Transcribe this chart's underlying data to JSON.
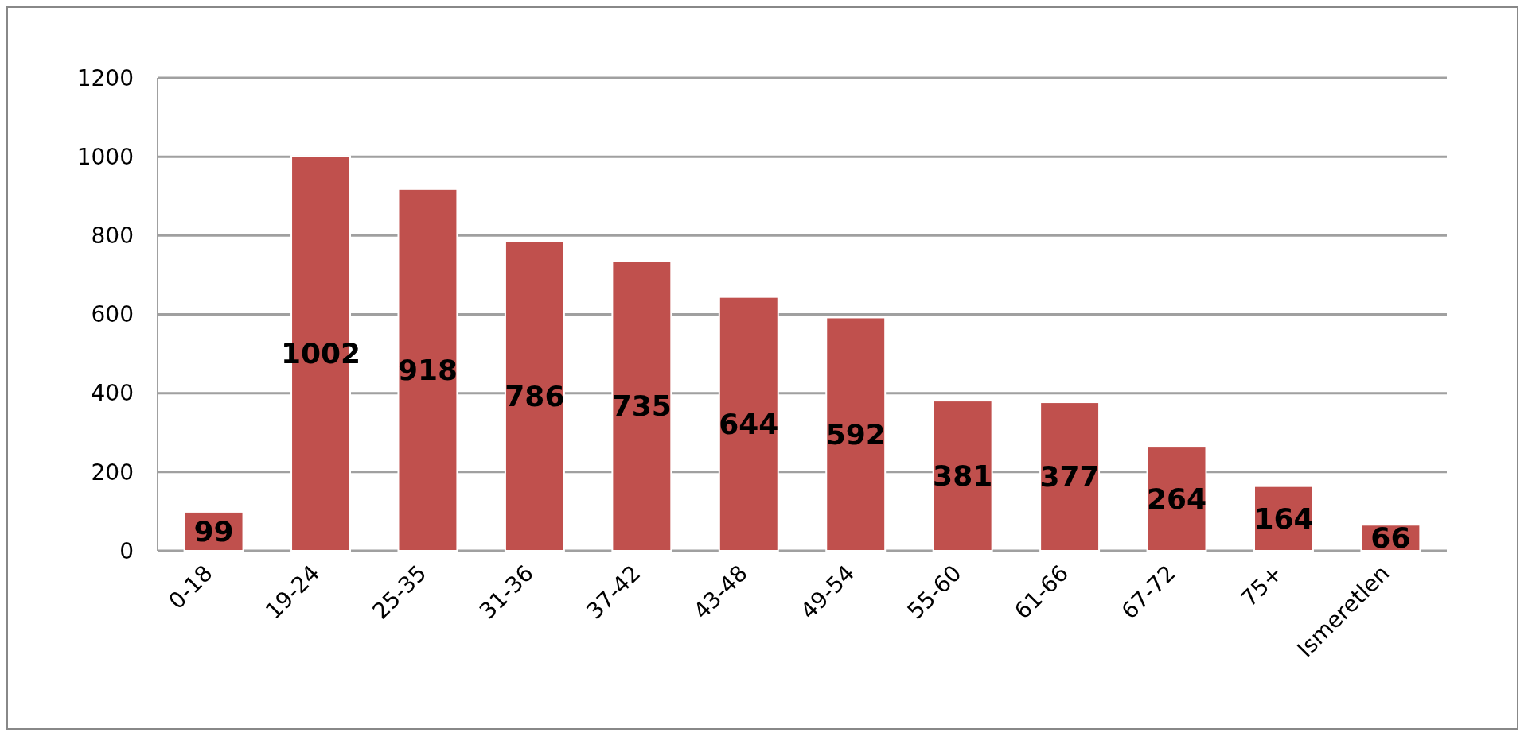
{
  "chart_data": {
    "type": "bar",
    "categories": [
      "0-18",
      "19-24",
      "25-35",
      "31-36",
      "37-42",
      "43-48",
      "49-54",
      "55-60",
      "61-66",
      "67-72",
      "75+",
      "Ismeretlen"
    ],
    "values": [
      99,
      1002,
      918,
      786,
      735,
      644,
      592,
      381,
      377,
      264,
      164,
      66
    ],
    "color": "#c0504d",
    "ylim": [
      0,
      1200
    ],
    "yticks": [
      0,
      200,
      400,
      600,
      800,
      1000,
      1200
    ],
    "grid": "y",
    "data_labels": true
  }
}
